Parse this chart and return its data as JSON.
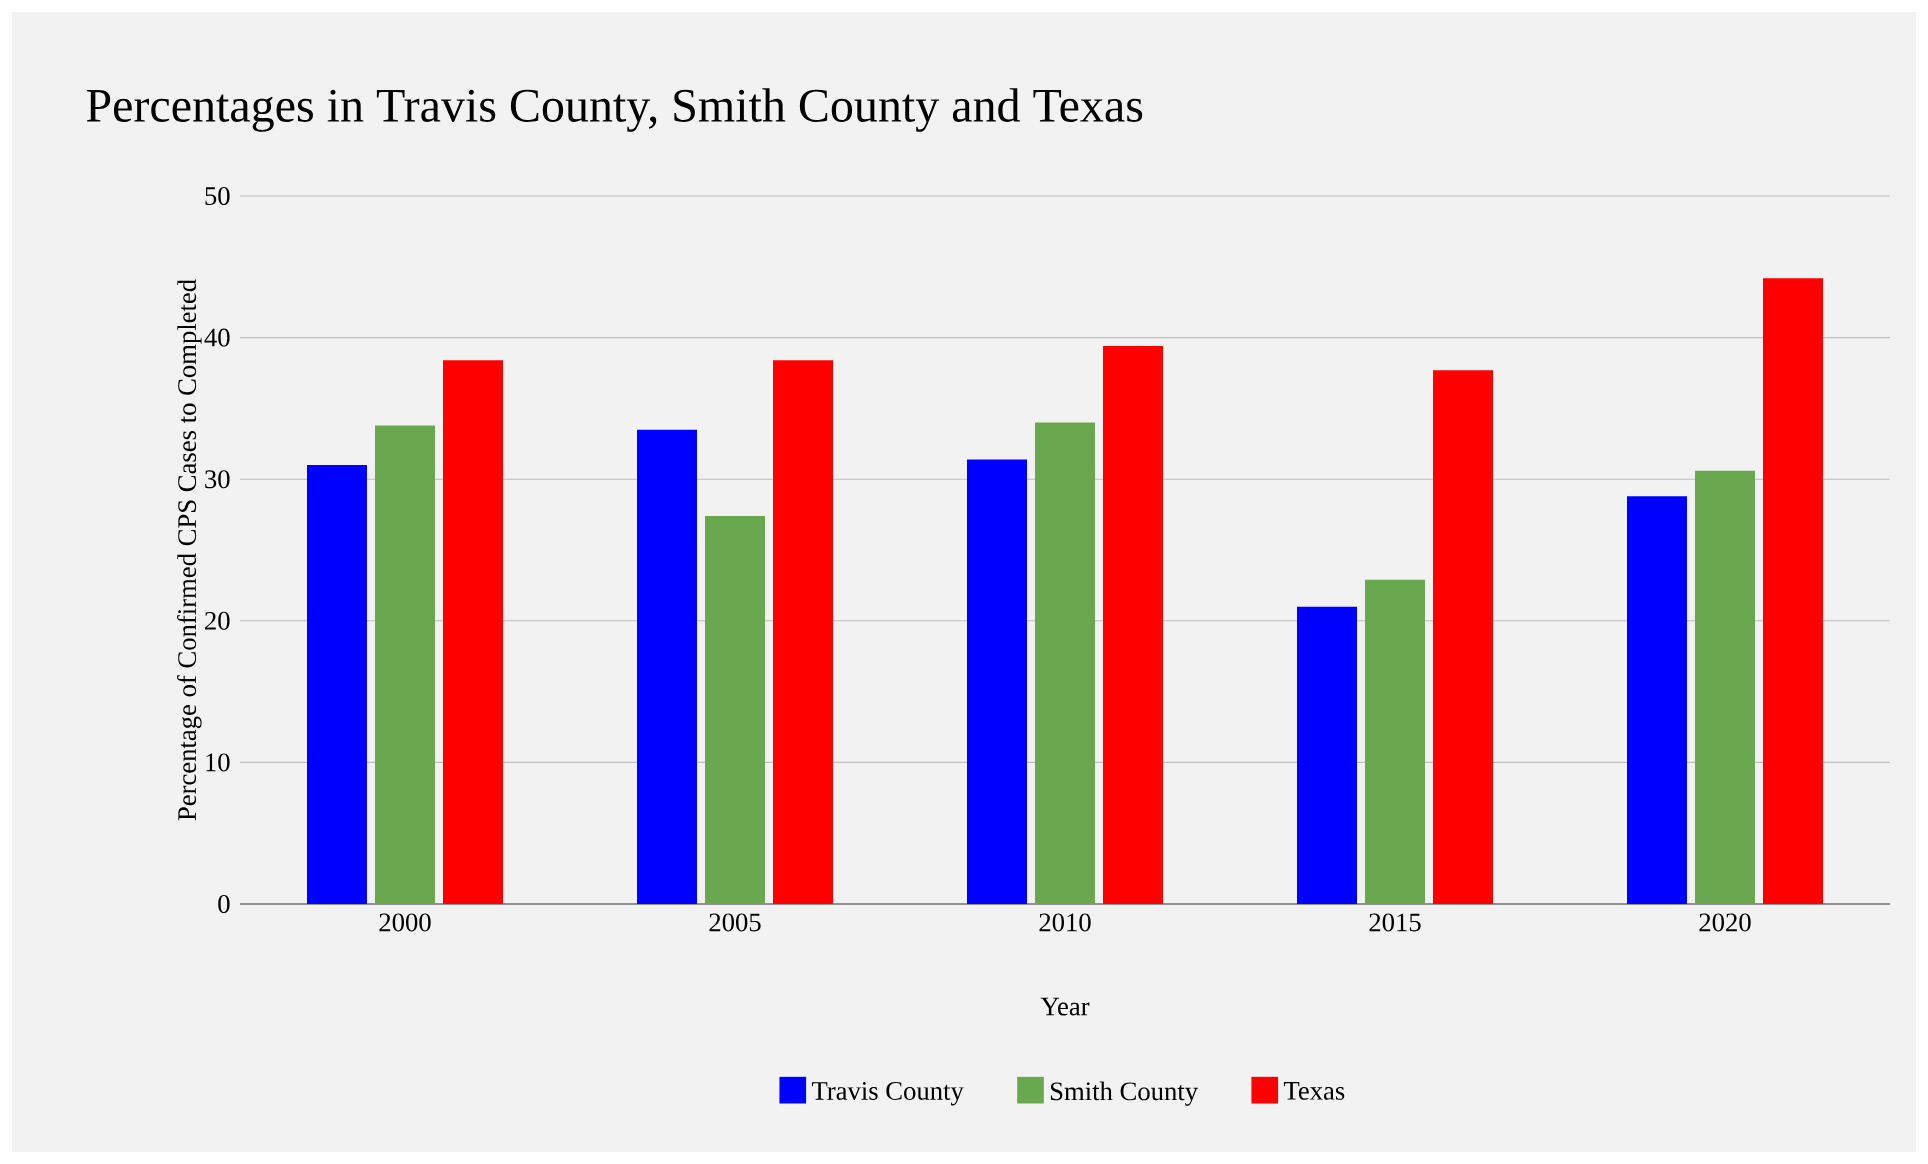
{
  "chart_data": {
    "type": "bar",
    "title": "Percentages in Travis County, Smith County and Texas",
    "xlabel": "Year",
    "ylabel": "Percentage of Confirmed CPS Cases to Completed",
    "categories": [
      "2000",
      "2005",
      "2010",
      "2015",
      "2020"
    ],
    "series": [
      {
        "name": "Travis County",
        "color": "#0000ff",
        "values": [
          31.0,
          33.5,
          31.4,
          21.0,
          28.8
        ]
      },
      {
        "name": "Smith County",
        "color": "#6aa84f",
        "values": [
          33.8,
          27.4,
          34.0,
          22.9,
          30.6
        ]
      },
      {
        "name": "Texas",
        "color": "#ff0000",
        "values": [
          38.4,
          38.4,
          39.4,
          37.7,
          44.2
        ]
      }
    ],
    "ylim": [
      0,
      50
    ],
    "yticks": [
      0,
      10,
      20,
      30,
      40,
      50
    ],
    "grid": "y",
    "legend": "bottom"
  }
}
